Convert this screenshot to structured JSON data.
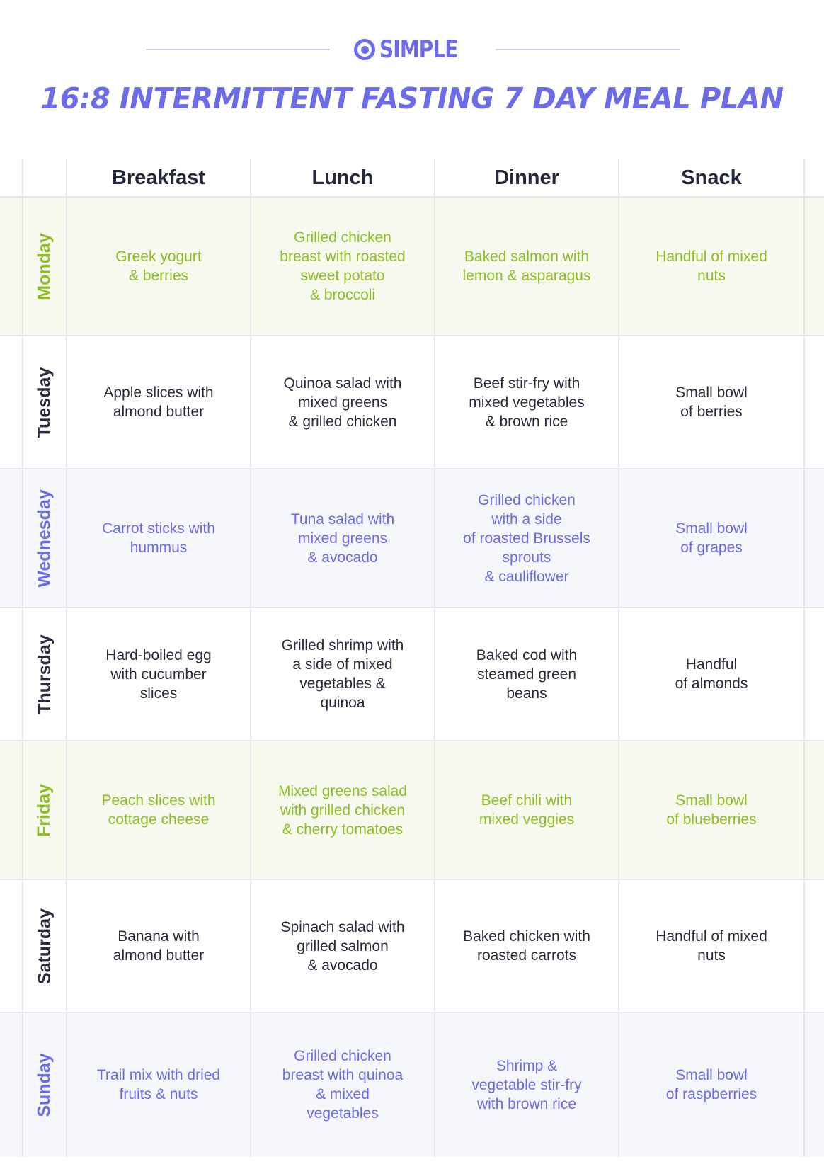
{
  "brand": {
    "name": "SIMPLE",
    "accent": "#6b6ce6"
  },
  "title": "16:8 INTERMITTENT FASTING 7 DAY MEAL PLAN",
  "columns": [
    "Breakfast",
    "Lunch",
    "Dinner",
    "Snack"
  ],
  "colors": {
    "green": "#8dbd27",
    "dark": "#2a2c3e",
    "blue": "#6b6ce6"
  },
  "rows": [
    {
      "day": "Monday",
      "breakfast": "Greek yogurt\n& berries",
      "lunch": "Grilled chicken\nbreast with roasted\nsweet potato\n& broccoli",
      "dinner": "Baked salmon with\nlemon & asparagus",
      "snack": "Handful of mixed\nnuts"
    },
    {
      "day": "Tuesday",
      "breakfast": "Apple slices with\nalmond butter",
      "lunch": "Quinoa salad with\nmixed greens\n& grilled chicken",
      "dinner": "Beef stir-fry with\nmixed vegetables\n& brown rice",
      "snack": "Small bowl\nof berries"
    },
    {
      "day": "Wednesday",
      "breakfast": "Carrot sticks with\nhummus",
      "lunch": "Tuna salad with\nmixed greens\n& avocado",
      "dinner": "Grilled chicken\nwith a side\nof roasted Brussels\nsprouts\n& cauliflower",
      "snack": "Small bowl\nof grapes"
    },
    {
      "day": "Thursday",
      "breakfast": "Hard-boiled egg\nwith cucumber\nslices",
      "lunch": "Grilled shrimp with\na side of mixed\nvegetables &\nquinoa",
      "dinner": "Baked cod with\nsteamed green\nbeans",
      "snack": "Handful\nof almonds"
    },
    {
      "day": "Friday",
      "breakfast": "Peach slices with\ncottage cheese",
      "lunch": "Mixed greens salad\nwith grilled chicken\n& cherry tomatoes",
      "dinner": "Beef chili with\nmixed veggies",
      "snack": "Small bowl\nof blueberries"
    },
    {
      "day": "Saturday",
      "breakfast": "Banana with\nalmond butter",
      "lunch": "Spinach salad with\ngrilled salmon\n& avocado",
      "dinner": "Baked chicken with\nroasted carrots",
      "snack": "Handful of mixed\nnuts"
    },
    {
      "day": "Sunday",
      "breakfast": "Trail mix with dried\nfruits & nuts",
      "lunch": "Grilled chicken\nbreast with quinoa\n& mixed\nvegetables",
      "dinner": "Shrimp &\nvegetable stir-fry\nwith brown rice",
      "snack": "Small bowl\nof raspberries"
    }
  ]
}
